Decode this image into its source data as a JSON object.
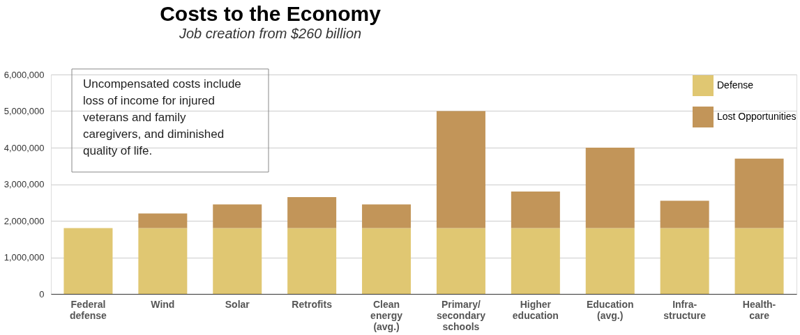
{
  "chart_data": {
    "type": "bar",
    "title": "Costs to the Economy",
    "subtitle": "Job creation from $260 billion",
    "categories": [
      "Federal\ndefense",
      "Wind",
      "Solar",
      "Retrofits",
      "Clean\nenergy\n(avg.)",
      "Primary/\nsecondary\nschools",
      "Higher\neducation",
      "Education\n(avg.)",
      "Infra-\nstructure",
      "Health-\ncare"
    ],
    "stacked": true,
    "series": [
      {
        "name": "Defense",
        "color": "#e0c772",
        "values": [
          1800000,
          1800000,
          1800000,
          1800000,
          1800000,
          1800000,
          1800000,
          1800000,
          1800000,
          1800000
        ]
      },
      {
        "name": "Lost Opportunities",
        "color": "#c29559",
        "values": [
          0,
          400000,
          650000,
          850000,
          650000,
          3200000,
          1000000,
          2200000,
          750000,
          1900000
        ]
      }
    ],
    "ylim": [
      0,
      6000000
    ],
    "yticks": [
      0,
      {
        "value": 1000000,
        "label": "1,000,000"
      },
      {
        "value": 2000000,
        "label": "2,000,000"
      },
      {
        "value": 3000000,
        "label": "3,000,000"
      },
      {
        "value": 4000000,
        "label": "4,000,000"
      },
      {
        "value": 5000000,
        "label": "5,000,000"
      },
      {
        "value": 6000000,
        "label": "6,000,000"
      }
    ],
    "grid": "y",
    "legend": "top right",
    "annotations": [
      "Uncompensated costs include loss of income for injured veterans and family caregivers, and diminished quality of life."
    ]
  }
}
